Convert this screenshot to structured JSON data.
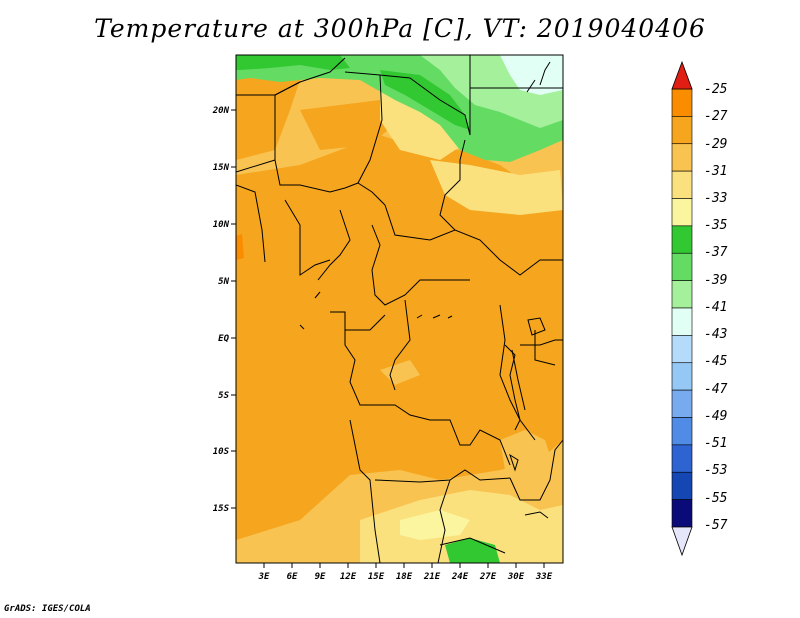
{
  "title": "Temperature at 300hPa [C], VT: 2019040406",
  "credit": "GrADS: IGES/COLA",
  "map": {
    "lat_labels": [
      "20N",
      "15N",
      "10N",
      "5N",
      "EQ",
      "5S",
      "10S",
      "15S"
    ],
    "lon_labels": [
      "3E",
      "6E",
      "9E",
      "12E",
      "15E",
      "18E",
      "21E",
      "24E",
      "27E",
      "30E",
      "33E"
    ]
  },
  "colorbar": {
    "labels": [
      "-25",
      "-27",
      "-29",
      "-31",
      "-33",
      "-35",
      "-37",
      "-39",
      "-41",
      "-43",
      "-45",
      "-47",
      "-49",
      "-51",
      "-53",
      "-55",
      "-57"
    ],
    "colors": [
      "#f0501e",
      "#fa8c00",
      "#f5a51e",
      "#f8c350",
      "#fae17d",
      "#fbf5a0",
      "#32c832",
      "#64dc64",
      "#a5f09b",
      "#e1fff5",
      "#b4dcfa",
      "#96c8f5",
      "#78aaf0",
      "#508ce6",
      "#2d64d2",
      "#1446b4",
      "#0a0a78"
    ],
    "top_arrow_color": "#e11e14",
    "bottom_arrow_color": "#e6e6fa"
  }
}
